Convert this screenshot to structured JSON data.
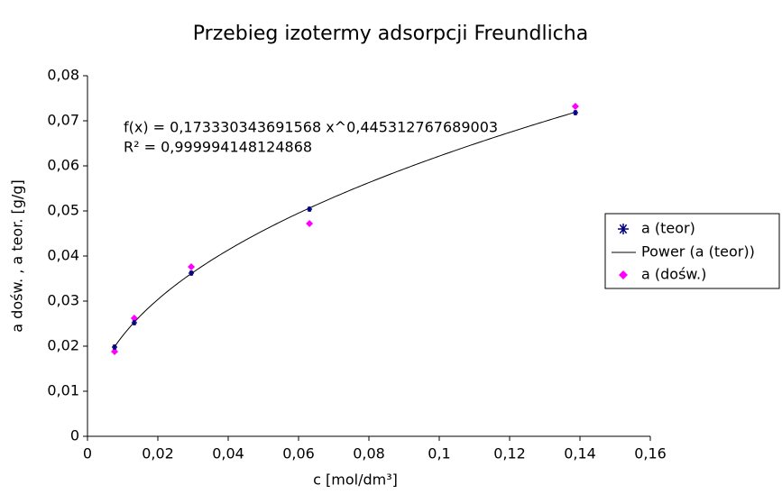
{
  "chart_data": {
    "type": "scatter",
    "title": "Przebieg izotermy adsorpcji Freundlicha",
    "x_label": "c [mol/dm³]",
    "y_label": "a dośw. , a teor. [g/g]",
    "xlim": [
      0,
      0.16
    ],
    "xticks": [
      0,
      {
        "value": 0.02,
        "label": "0,02"
      },
      {
        "value": 0.04,
        "label": "0,04"
      },
      {
        "value": 0.06,
        "label": "0,06"
      },
      {
        "value": 0.08,
        "label": "0,08"
      },
      {
        "value": 0.1,
        "label": "0,1"
      },
      {
        "value": 0.12,
        "label": "0,12"
      },
      {
        "value": 0.14,
        "label": "0,14"
      },
      {
        "value": 0.16,
        "label": "0,16"
      }
    ],
    "ylim": [
      0,
      0.08
    ],
    "yticks": [
      0,
      {
        "value": 0.01,
        "label": "0,01"
      },
      {
        "value": 0.02,
        "label": "0,02"
      },
      {
        "value": 0.03,
        "label": "0,03"
      },
      {
        "value": 0.04,
        "label": "0,04"
      },
      {
        "value": 0.05,
        "label": "0,05"
      },
      {
        "value": 0.06,
        "label": "0,06"
      },
      {
        "value": 0.07,
        "label": "0,07"
      },
      {
        "value": 0.08,
        "label": "0,08"
      }
    ],
    "grid": false,
    "series": [
      {
        "name": "a (teor)",
        "color": "#000080",
        "marker": "star",
        "x": [
          0.0077,
          0.0133,
          0.0295,
          0.0631,
          0.1387
        ],
        "values": [
          0.0198,
          0.0252,
          0.0362,
          0.0504,
          0.0718
        ]
      },
      {
        "name": "a (dośw.)",
        "color": "#ff00ff",
        "marker": "diamond",
        "x": [
          0.0077,
          0.0133,
          0.0295,
          0.0631,
          0.1387
        ],
        "values": [
          0.0188,
          0.0262,
          0.0376,
          0.0472,
          0.0732
        ]
      }
    ],
    "trendline": {
      "name": "Power (a (teor))",
      "color": "#000000",
      "coefficient": 0.173330343691568,
      "exponent": 0.445312767689003,
      "equation": "f(x) = 0,173330343691568 x^0,445312767689003",
      "r_squared": "R² = 0,999994148124868"
    },
    "legend": "right"
  }
}
